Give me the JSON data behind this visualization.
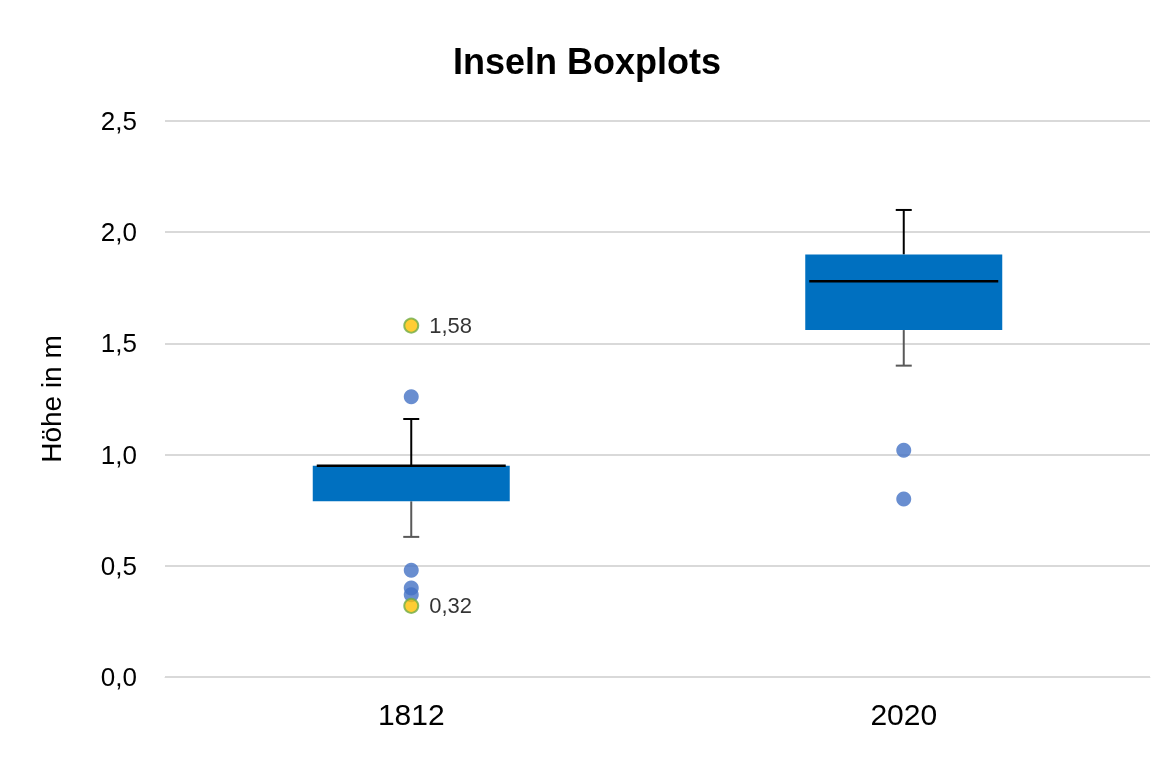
{
  "chart_data": {
    "type": "box",
    "title": "Inseln Boxplots",
    "ylabel": "Höhe in m",
    "categories": [
      "1812",
      "2020"
    ],
    "ylim": [
      0,
      2.5
    ],
    "yticks": [
      {
        "value": 0,
        "label": "0,0"
      },
      {
        "value": 0.5,
        "label": "0,5"
      },
      {
        "value": 1,
        "label": "1,0"
      },
      {
        "value": 1.5,
        "label": "1,5"
      },
      {
        "value": 2,
        "label": "2,0"
      },
      {
        "value": 2.5,
        "label": "2,5"
      }
    ],
    "grid": "y",
    "series": [
      {
        "type": "box",
        "color": "#0070c0",
        "boxes": [
          {
            "low": 0.63,
            "q1": 0.79,
            "median": 0.95,
            "q3": 0.95,
            "high": 1.16,
            "outliers": [
              1.26,
              0.48,
              0.4,
              0.37
            ]
          },
          {
            "low": 1.4,
            "q1": 1.56,
            "median": 1.78,
            "q3": 1.9,
            "high": 2.1,
            "outliers": [
              1.02,
              0.8
            ]
          }
        ]
      },
      {
        "type": "scatter",
        "color": "#ffc000",
        "values": [
          1.58,
          null
        ],
        "value_labels": [
          "1,58",
          null
        ]
      },
      {
        "type": "scatter",
        "color": "#ffc000",
        "values": [
          0.32,
          null
        ],
        "value_labels": [
          "0,32",
          null
        ]
      }
    ]
  }
}
